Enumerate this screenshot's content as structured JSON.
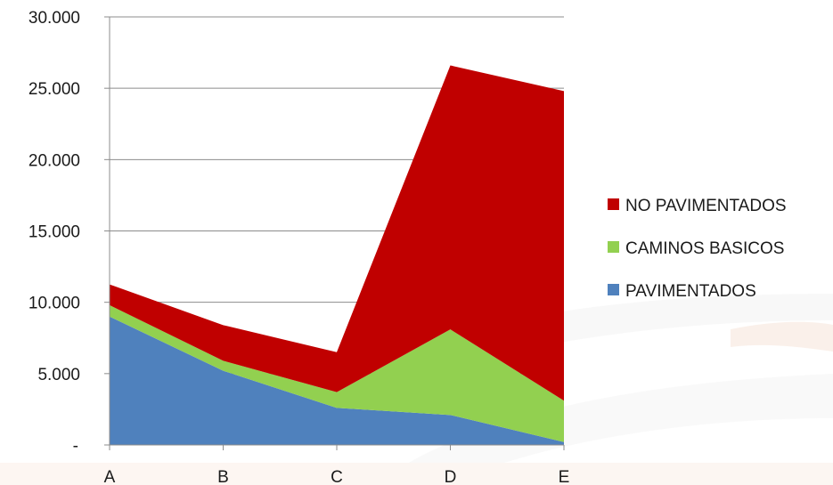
{
  "chart_data": {
    "type": "area",
    "stacked": true,
    "categories": [
      "A",
      "B",
      "C",
      "D",
      "E"
    ],
    "series": [
      {
        "name": "PAVIMENTADOS",
        "color": "#4f81bd",
        "values": [
          9000,
          5200,
          2600,
          2100,
          200
        ]
      },
      {
        "name": "CAMINOS BASICOS",
        "color": "#92d050",
        "values": [
          800,
          700,
          1100,
          6000,
          2900
        ]
      },
      {
        "name": "NO PAVIMENTADOS",
        "color": "#c00000",
        "values": [
          1450,
          2500,
          2800,
          18500,
          21700
        ]
      }
    ],
    "y_ticks": [
      "-",
      "5.000",
      "10.000",
      "15.000",
      "20.000",
      "25.000",
      "30.000"
    ],
    "ylim": [
      0,
      30000
    ],
    "grid": true,
    "legend_position": "right",
    "legend_order": [
      "NO PAVIMENTADOS",
      "CAMINOS BASICOS",
      "PAVIMENTADOS"
    ]
  }
}
